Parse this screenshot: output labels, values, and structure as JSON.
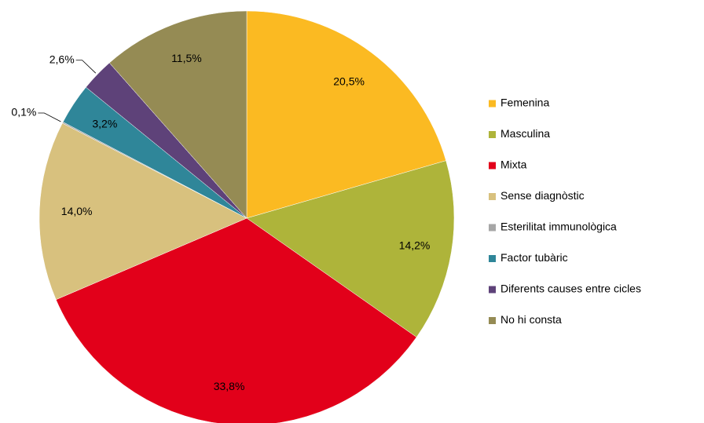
{
  "chart_data": {
    "type": "pie",
    "categories": [
      "Femenina",
      "Masculina",
      "Mixta",
      "Sense diagnòstic",
      "Esterilitat immunològica",
      "Factor tubàric",
      "Diferents causes entre cicles",
      "No hi consta"
    ],
    "values": [
      20.5,
      14.2,
      33.8,
      14.0,
      0.1,
      3.2,
      2.6,
      11.5
    ],
    "value_labels": [
      "20,5%",
      "14,2%",
      "33,8%",
      "14,0%",
      "0,1%",
      "3,2%",
      "2,6%",
      "11,5%"
    ],
    "colors": [
      "#FBBA22",
      "#AEB43A",
      "#E2001A",
      "#D8C17E",
      "#A6A6A6",
      "#2F8699",
      "#5E4279",
      "#958B54"
    ],
    "legend": "right"
  }
}
